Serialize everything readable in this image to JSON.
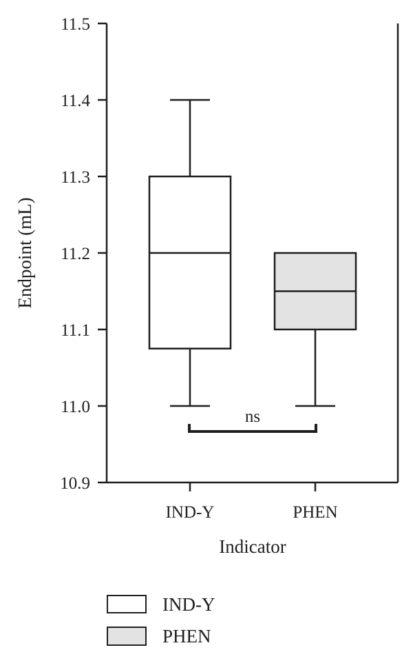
{
  "chart_data": {
    "type": "box",
    "ylabel": "Endpoint (mL)",
    "xlabel": "Indicator",
    "ylim": [
      10.9,
      11.5
    ],
    "yticks": [
      "10.9",
      "11.0",
      "11.1",
      "11.2",
      "11.3",
      "11.4",
      "11.5"
    ],
    "grid": false,
    "legend_position": "bottom-left",
    "categories": [
      "IND-Y",
      "PHEN"
    ],
    "series": [
      {
        "name": "IND-Y",
        "min": 11.0,
        "q1": 11.075,
        "median": 11.2,
        "q3": 11.3,
        "max": 11.4,
        "fill": "#ffffff"
      },
      {
        "name": "PHEN",
        "min": 11.0,
        "q1": 11.1,
        "median": 11.15,
        "q3": 11.2,
        "max": 11.2,
        "fill": "#e3e3e3"
      }
    ],
    "annotations": [
      {
        "text": "ns",
        "between": [
          "IND-Y",
          "PHEN"
        ]
      }
    ],
    "colors": {
      "stroke": "#1e1e1e",
      "ind_y_fill": "#ffffff",
      "phen_fill": "#e3e3e3"
    }
  }
}
